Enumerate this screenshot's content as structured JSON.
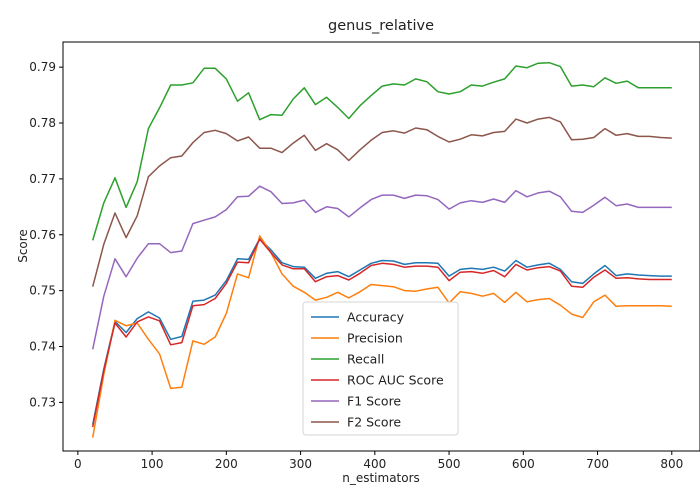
{
  "chart_data": {
    "type": "line",
    "title": "genus_relative",
    "xlabel": "n_estimators",
    "ylabel": "Score",
    "xlim": [
      -20,
      838
    ],
    "ylim": [
      0.7213,
      0.7945
    ],
    "xticks": [
      0,
      100,
      200,
      300,
      400,
      500,
      600,
      700,
      800
    ],
    "yticks": [
      0.73,
      0.74,
      0.75,
      0.76,
      0.77,
      0.78,
      0.79
    ],
    "grid": false,
    "legend_position": "lower-center",
    "x": [
      20,
      35,
      50,
      65,
      80,
      95,
      110,
      125,
      140,
      155,
      170,
      185,
      200,
      215,
      230,
      245,
      260,
      275,
      290,
      305,
      320,
      335,
      350,
      365,
      380,
      395,
      410,
      425,
      440,
      455,
      470,
      485,
      500,
      515,
      530,
      545,
      560,
      575,
      590,
      605,
      620,
      635,
      650,
      665,
      680,
      695,
      710,
      725,
      740,
      755,
      770,
      785,
      800
    ],
    "series": [
      {
        "name": "Accuracy",
        "color": "#1f77b4",
        "values": [
          0.726,
          0.736,
          0.7445,
          0.7425,
          0.745,
          0.7462,
          0.7451,
          0.7413,
          0.7418,
          0.7481,
          0.7483,
          0.7492,
          0.7518,
          0.7557,
          0.7556,
          0.7593,
          0.7573,
          0.755,
          0.7543,
          0.7542,
          0.7522,
          0.7531,
          0.7534,
          0.7525,
          0.7537,
          0.7549,
          0.7554,
          0.7553,
          0.7547,
          0.755,
          0.755,
          0.7549,
          0.7526,
          0.7538,
          0.754,
          0.7538,
          0.7542,
          0.7535,
          0.7554,
          0.7542,
          0.7546,
          0.7549,
          0.7538,
          0.7516,
          0.7513,
          0.753,
          0.7545,
          0.7527,
          0.753,
          0.7528,
          0.7527,
          0.7526,
          0.7526
        ]
      },
      {
        "name": "Precision",
        "color": "#ff7f0e",
        "values": [
          0.7237,
          0.735,
          0.7447,
          0.7437,
          0.7442,
          0.7413,
          0.7387,
          0.7325,
          0.7327,
          0.741,
          0.7404,
          0.7417,
          0.7459,
          0.753,
          0.7523,
          0.7598,
          0.7568,
          0.753,
          0.7508,
          0.7497,
          0.7483,
          0.7488,
          0.7497,
          0.7487,
          0.7498,
          0.7511,
          0.7509,
          0.7507,
          0.75,
          0.7499,
          0.7503,
          0.7506,
          0.7478,
          0.7498,
          0.7495,
          0.749,
          0.7495,
          0.7479,
          0.7497,
          0.748,
          0.7484,
          0.7486,
          0.7474,
          0.7458,
          0.7452,
          0.748,
          0.7492,
          0.7472,
          0.7473,
          0.7473,
          0.7473,
          0.7473,
          0.7472
        ]
      },
      {
        "name": "Recall",
        "color": "#2ca02c",
        "values": [
          0.759,
          0.7657,
          0.7702,
          0.7649,
          0.7695,
          0.779,
          0.7827,
          0.7868,
          0.7868,
          0.7872,
          0.7898,
          0.7898,
          0.7879,
          0.7839,
          0.7854,
          0.7806,
          0.7815,
          0.7814,
          0.7843,
          0.7863,
          0.7833,
          0.7846,
          0.7828,
          0.7808,
          0.7831,
          0.7849,
          0.7866,
          0.787,
          0.7868,
          0.7879,
          0.7874,
          0.7856,
          0.7852,
          0.7856,
          0.7868,
          0.7866,
          0.7873,
          0.7879,
          0.7902,
          0.7899,
          0.7907,
          0.7908,
          0.7901,
          0.7866,
          0.7868,
          0.7865,
          0.7881,
          0.7871,
          0.7875,
          0.7863,
          0.7863,
          0.7863,
          0.7863
        ]
      },
      {
        "name": "ROC AUC Score",
        "color": "#d62728",
        "values": [
          0.7256,
          0.7357,
          0.7442,
          0.7417,
          0.7444,
          0.7453,
          0.7446,
          0.7403,
          0.7407,
          0.7473,
          0.7475,
          0.7486,
          0.7513,
          0.7551,
          0.755,
          0.7592,
          0.7568,
          0.7546,
          0.7539,
          0.7539,
          0.7516,
          0.7525,
          0.7527,
          0.7519,
          0.7531,
          0.7545,
          0.7549,
          0.7547,
          0.7542,
          0.7544,
          0.7544,
          0.7542,
          0.7518,
          0.7533,
          0.7534,
          0.7531,
          0.7536,
          0.7525,
          0.7547,
          0.7537,
          0.7541,
          0.7543,
          0.7535,
          0.7508,
          0.7506,
          0.7524,
          0.7537,
          0.7522,
          0.7523,
          0.7521,
          0.752,
          0.752,
          0.752
        ]
      },
      {
        "name": "F1 Score",
        "color": "#9467bd",
        "values": [
          0.7395,
          0.749,
          0.7557,
          0.7525,
          0.7558,
          0.7584,
          0.7584,
          0.7568,
          0.7571,
          0.762,
          0.7626,
          0.7632,
          0.7645,
          0.7668,
          0.7669,
          0.7687,
          0.7677,
          0.7656,
          0.7657,
          0.7662,
          0.764,
          0.765,
          0.7647,
          0.7632,
          0.7648,
          0.7663,
          0.7671,
          0.7671,
          0.7665,
          0.7671,
          0.767,
          0.7663,
          0.7646,
          0.7657,
          0.7661,
          0.7658,
          0.7664,
          0.7658,
          0.7679,
          0.7668,
          0.7675,
          0.7678,
          0.7668,
          0.7642,
          0.764,
          0.7653,
          0.7667,
          0.7652,
          0.7655,
          0.7649,
          0.7649,
          0.7649,
          0.7649
        ]
      },
      {
        "name": "F2 Score",
        "color": "#8c564b",
        "values": [
          0.7507,
          0.7583,
          0.7639,
          0.7595,
          0.7634,
          0.7704,
          0.7723,
          0.7738,
          0.7741,
          0.7765,
          0.7783,
          0.7787,
          0.7781,
          0.7768,
          0.7775,
          0.7755,
          0.7755,
          0.7747,
          0.7764,
          0.7778,
          0.7751,
          0.7763,
          0.7752,
          0.7733,
          0.7752,
          0.7769,
          0.7783,
          0.7786,
          0.7782,
          0.7791,
          0.7788,
          0.7776,
          0.7766,
          0.7771,
          0.7779,
          0.7777,
          0.7783,
          0.7785,
          0.7807,
          0.78,
          0.7807,
          0.781,
          0.7802,
          0.777,
          0.7771,
          0.7774,
          0.779,
          0.7778,
          0.7781,
          0.7776,
          0.7776,
          0.7774,
          0.7773
        ]
      }
    ]
  }
}
